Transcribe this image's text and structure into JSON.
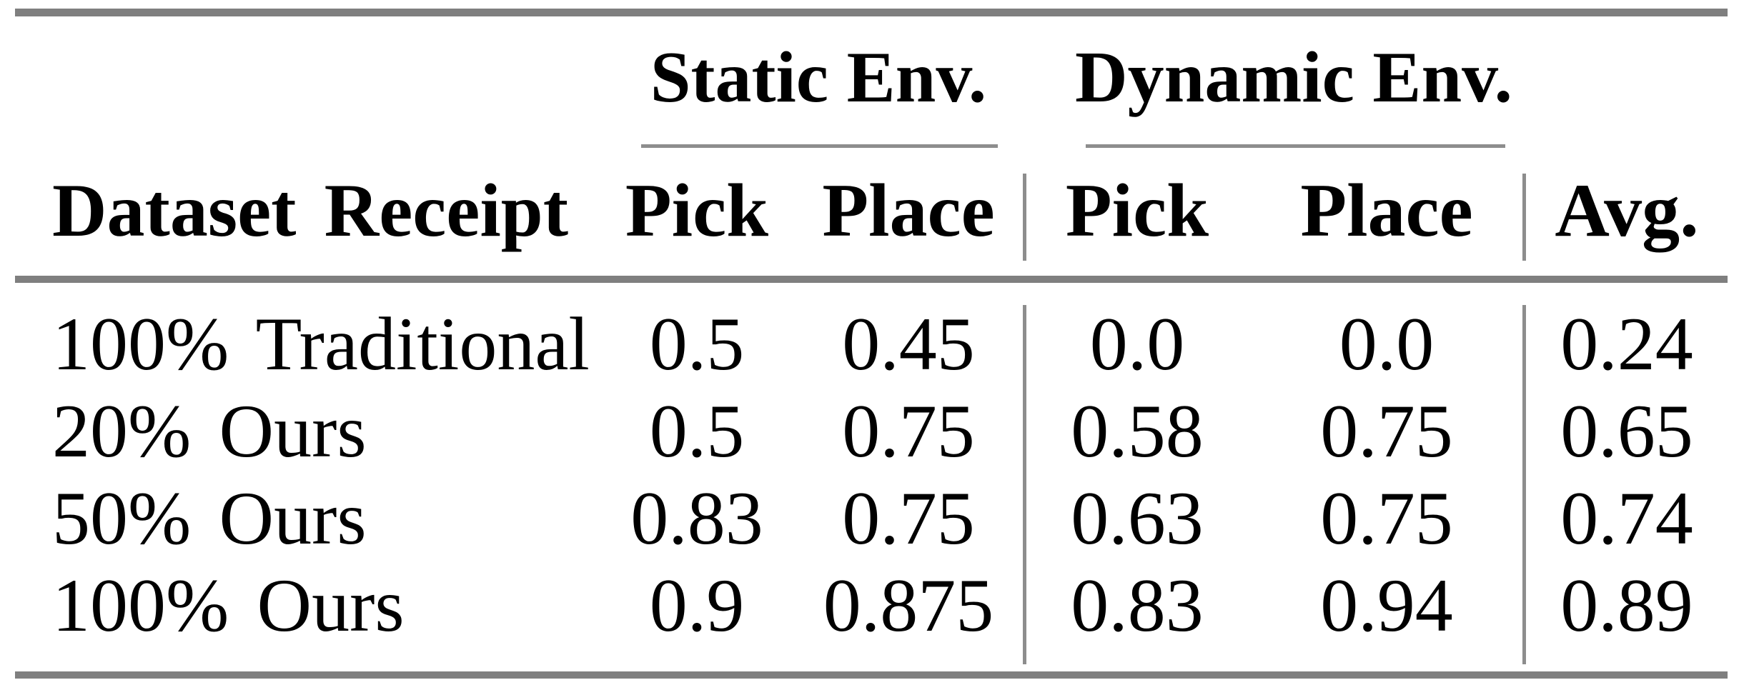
{
  "page": {
    "background": "#ffffff"
  },
  "table": {
    "group_headers": {
      "static": "Static Env.",
      "dynamic": "Dynamic Env."
    },
    "column_headers": {
      "row_label": "Dataset Receipt",
      "static_pick": "Pick",
      "static_place": "Place",
      "dynamic_pick": "Pick",
      "dynamic_place": "Place",
      "avg": "Avg."
    },
    "rows": [
      {
        "label": "100% Traditional",
        "static_pick": "0.5",
        "static_place": "0.45",
        "dynamic_pick": "0.0",
        "dynamic_place": "0.0",
        "avg": "0.24"
      },
      {
        "label": "20% Ours",
        "static_pick": "0.5",
        "static_place": "0.75",
        "dynamic_pick": "0.58",
        "dynamic_place": "0.75",
        "avg": "0.65"
      },
      {
        "label": "50% Ours",
        "static_pick": "0.83",
        "static_place": "0.75",
        "dynamic_pick": "0.63",
        "dynamic_place": "0.75",
        "avg": "0.74"
      },
      {
        "label": "100% Ours",
        "static_pick": "0.9",
        "static_place": "0.875",
        "dynamic_pick": "0.83",
        "dynamic_place": "0.94",
        "avg": "0.89"
      }
    ],
    "colors": {
      "heavy_rule": "#7f7f7f",
      "light_rule": "#8d8d8d",
      "text": "#000000"
    }
  },
  "chart_data": {
    "type": "table",
    "title": "",
    "columns": [
      "Dataset Receipt",
      "Static Env. Pick",
      "Static Env. Place",
      "Dynamic Env. Pick",
      "Dynamic Env. Place",
      "Avg."
    ],
    "rows": [
      [
        "100% Traditional",
        0.5,
        0.45,
        0.0,
        0.0,
        0.24
      ],
      [
        "20% Ours",
        0.5,
        0.75,
        0.58,
        0.75,
        0.65
      ],
      [
        "50% Ours",
        0.83,
        0.75,
        0.63,
        0.75,
        0.74
      ],
      [
        "100% Ours",
        0.9,
        0.875,
        0.83,
        0.94,
        0.89
      ]
    ]
  }
}
